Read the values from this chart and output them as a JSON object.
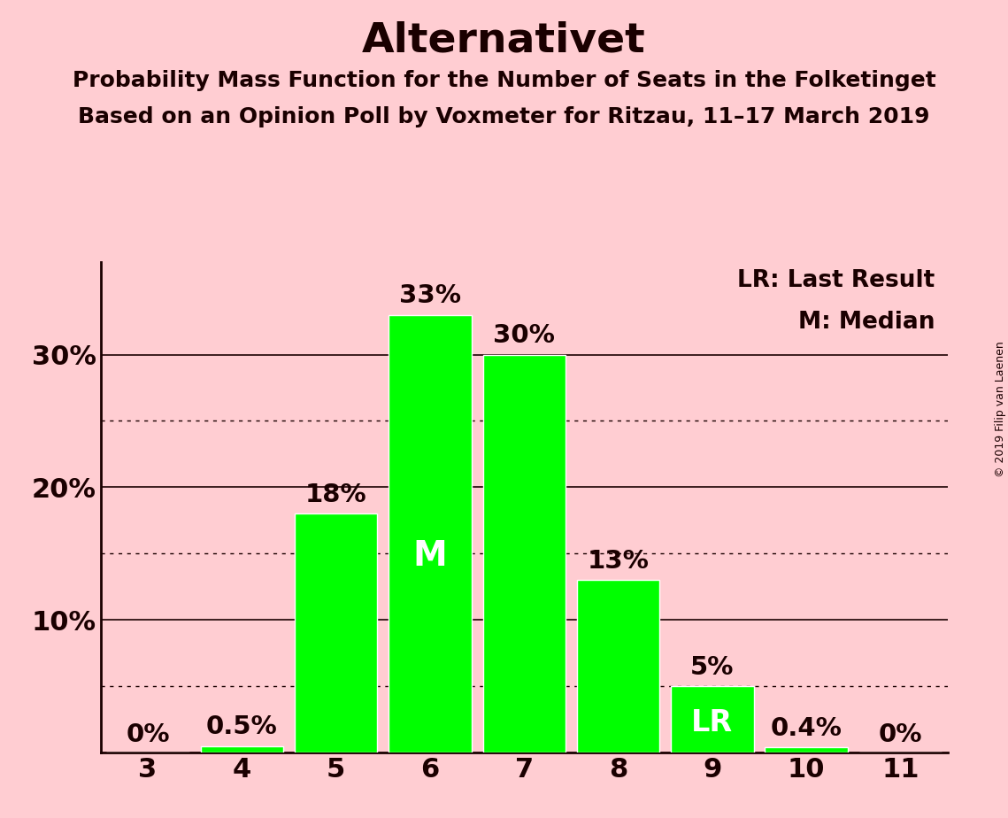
{
  "title": "Alternativet",
  "subtitle1": "Probability Mass Function for the Number of Seats in the Folketinget",
  "subtitle2": "Based on an Opinion Poll by Voxmeter for Ritzau, 11–17 March 2019",
  "copyright": "© 2019 Filip van Laenen",
  "seats": [
    3,
    4,
    5,
    6,
    7,
    8,
    9,
    10,
    11
  ],
  "values": [
    0.0,
    0.5,
    18.0,
    33.0,
    30.0,
    13.0,
    5.0,
    0.4,
    0.0
  ],
  "bar_labels": [
    "0%",
    "0.5%",
    "18%",
    "33%",
    "30%",
    "13%",
    "5%",
    "0.4%",
    "0%"
  ],
  "bar_color": "#00FF00",
  "background_color": "#FFCDD2",
  "bar_edge_color": "#FFFFFF",
  "text_color": "#1a0000",
  "inside_label_color": "#FFFFFF",
  "median_bar_idx": 3,
  "lr_bar_idx": 6,
  "yticks": [
    0,
    10,
    20,
    30
  ],
  "solid_lines": [
    10,
    20,
    30
  ],
  "dotted_lines": [
    5,
    15,
    25
  ],
  "ylim": [
    0,
    37
  ],
  "legend_text1": "LR: Last Result",
  "legend_text2": "M: Median",
  "title_fontsize": 34,
  "subtitle_fontsize": 18,
  "tick_fontsize": 22,
  "bar_label_fontsize": 21,
  "inside_label_fontsize": 28,
  "legend_fontsize": 19,
  "copyright_fontsize": 9,
  "bar_width": 0.88
}
